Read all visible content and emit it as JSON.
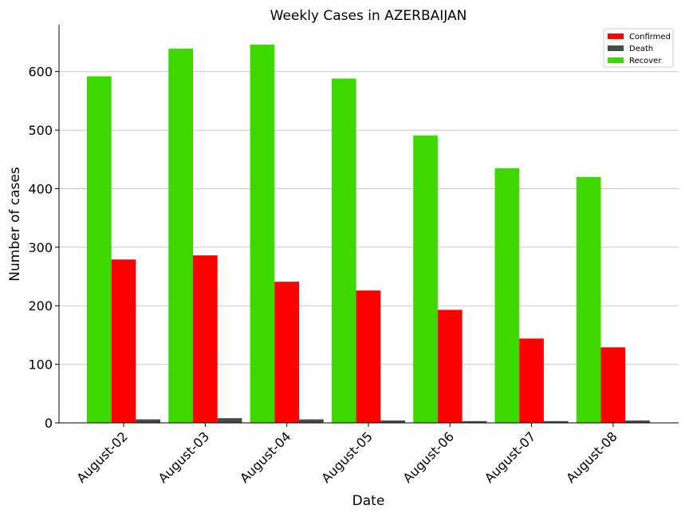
{
  "chart_data": {
    "type": "bar",
    "title": "Weekly Cases in AZERBAIJAN",
    "xlabel": "Date",
    "ylabel": "Number of cases",
    "categories": [
      "August-02",
      "August-03",
      "August-04",
      "August-05",
      "August-06",
      "August-07",
      "August-08"
    ],
    "series": [
      {
        "name": "Recover",
        "color": "#3dd800",
        "values": [
          592,
          639,
          646,
          588,
          491,
          435,
          420
        ]
      },
      {
        "name": "Confirmed",
        "color": "#ff0000",
        "values": [
          279,
          286,
          241,
          226,
          193,
          144,
          129
        ]
      },
      {
        "name": "Death",
        "color": "#4a4a4a",
        "values": [
          6,
          8,
          6,
          4,
          3,
          3,
          4
        ]
      }
    ],
    "legend_order": [
      "Confirmed",
      "Death",
      "Recover"
    ],
    "legend_position": "top-right",
    "ylim": [
      0,
      680
    ],
    "yticks": [
      0,
      100,
      200,
      300,
      400,
      500,
      600
    ],
    "grid": "horizontal"
  }
}
